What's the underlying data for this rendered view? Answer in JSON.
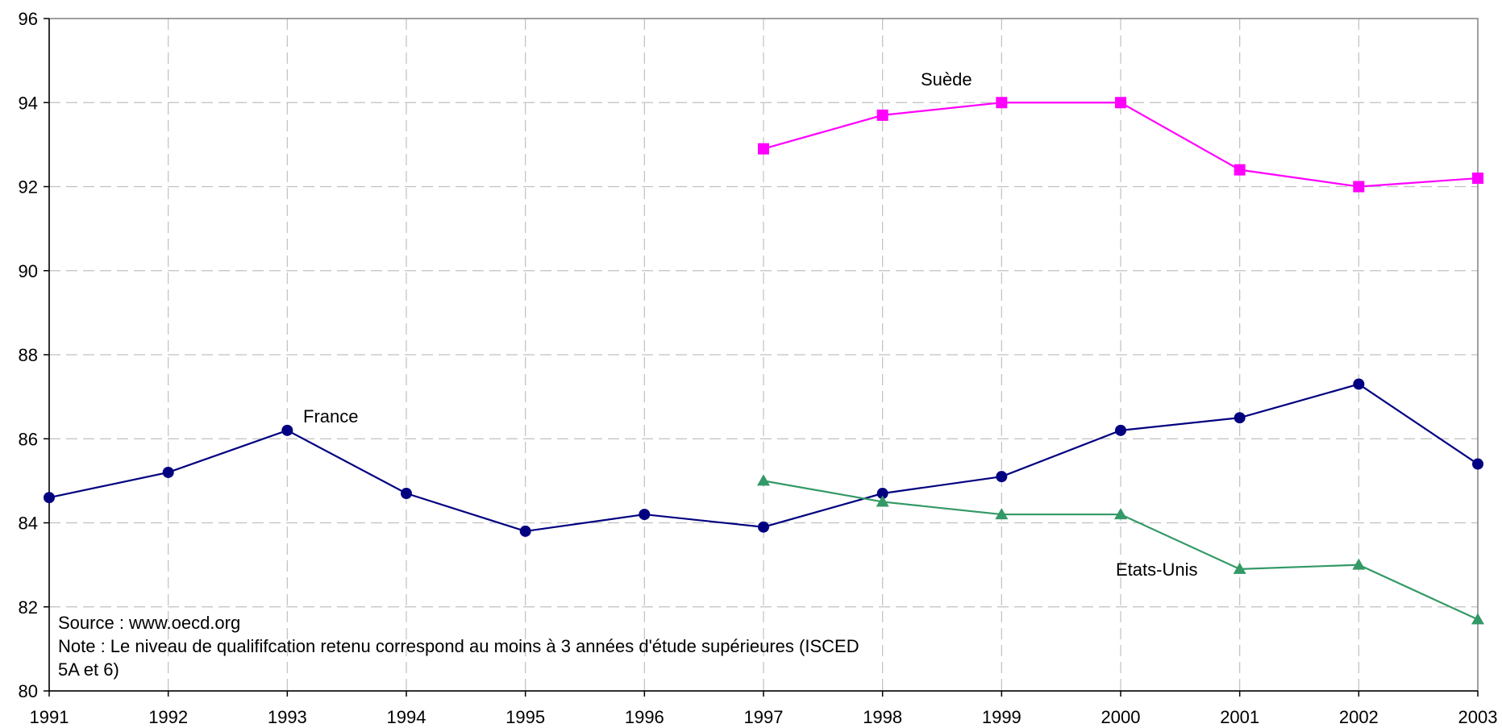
{
  "chart_data": {
    "type": "line",
    "x": [
      1991,
      1992,
      1993,
      1994,
      1995,
      1996,
      1997,
      1998,
      1999,
      2000,
      2001,
      2002,
      2003
    ],
    "xlim": [
      1991,
      2003
    ],
    "ylim": [
      80,
      96
    ],
    "yticks": [
      80,
      82,
      84,
      86,
      88,
      90,
      92,
      94,
      96
    ],
    "grid": true,
    "series": [
      {
        "name": "France",
        "color": "#000080",
        "marker": "circle",
        "values": [
          84.6,
          85.2,
          86.2,
          84.7,
          83.8,
          84.2,
          83.9,
          84.7,
          85.1,
          86.2,
          86.5,
          87.3,
          85.4
        ]
      },
      {
        "name": "Suède",
        "color": "#ff00ff",
        "marker": "square",
        "values": [
          null,
          null,
          null,
          null,
          null,
          null,
          92.9,
          93.7,
          94.0,
          94.0,
          92.4,
          92.0,
          92.2
        ]
      },
      {
        "name": "Etats-Unis",
        "color": "#339966",
        "marker": "triangle",
        "values": [
          null,
          null,
          null,
          null,
          null,
          null,
          85.0,
          84.5,
          84.2,
          84.2,
          82.9,
          83.0,
          81.7
        ]
      }
    ],
    "notes": [
      "Source : www.oecd.org",
      "Note : Le niveau de qualififcation retenu correspond au moins à 3 années d'étude supérieures (ISCED",
      "5A et 6)"
    ]
  }
}
